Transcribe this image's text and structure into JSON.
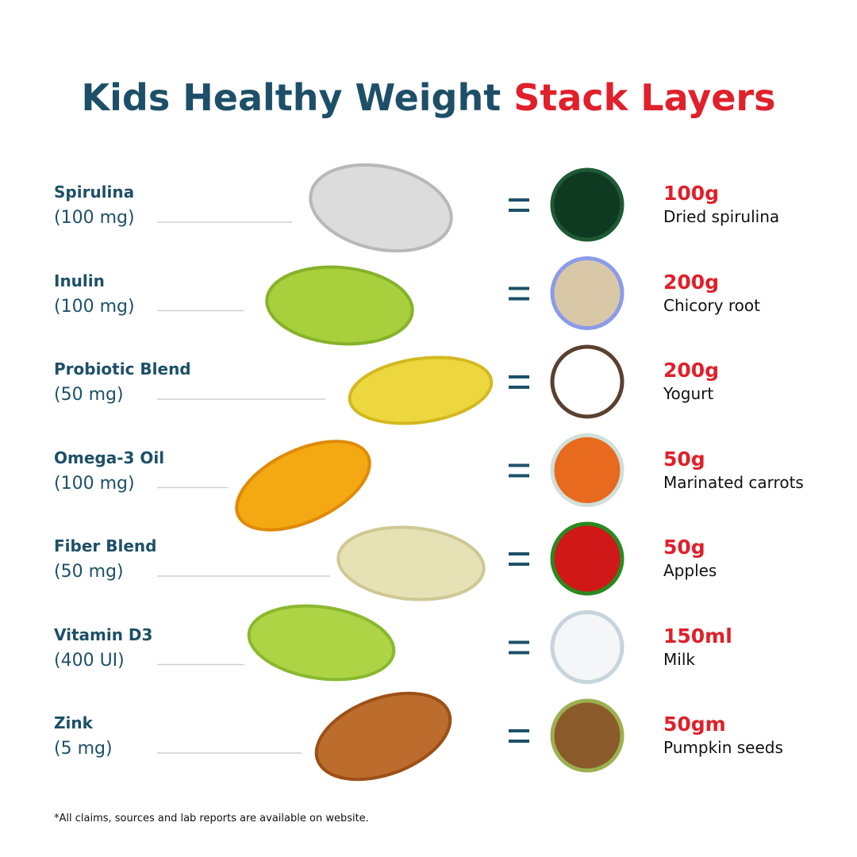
{
  "header": {
    "title_main": "Kids Healthy Weight",
    "title_accent": "Stack Layers"
  },
  "rows": [
    {
      "name": "Spirulina",
      "dose": "(100 mg)",
      "amount": "100g",
      "food": "Dried spirulina"
    },
    {
      "name": "Inulin",
      "dose": "(100 mg)",
      "amount": "200g",
      "food": "Chicory root"
    },
    {
      "name": "Probiotic Blend",
      "dose": "(50 mg)",
      "amount": "200g",
      "food": "Yogurt"
    },
    {
      "name": "Omega-3 Oil",
      "dose": "(100 mg)",
      "amount": "50g",
      "food": "Marinated carrots"
    },
    {
      "name": "Fiber Blend",
      "dose": "(50 mg)",
      "amount": "50g",
      "food": "Apples"
    },
    {
      "name": "Vitamin D3",
      "dose": "(400 UI)",
      "amount": "150ml",
      "food": "Milk"
    },
    {
      "name": "Zink",
      "dose": "(5 mg)",
      "amount": "50gm",
      "food": "Pumpkin seeds"
    }
  ],
  "footnote": "*All claims, sources and lab reports are available on website."
}
